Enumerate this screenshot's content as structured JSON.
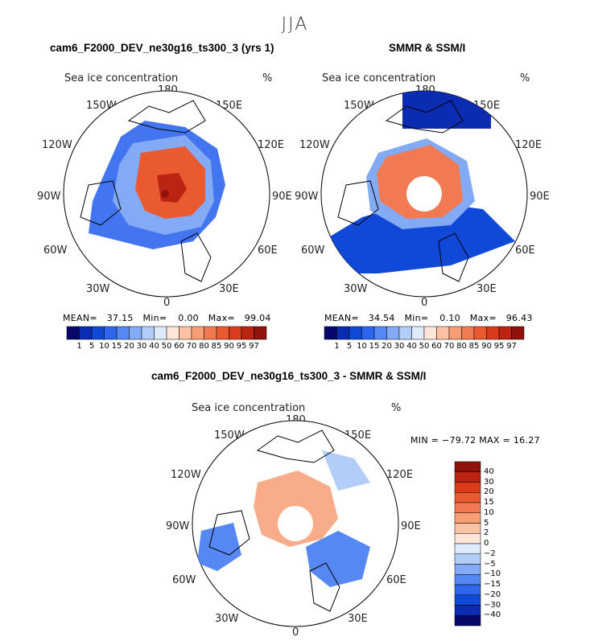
{
  "title": "JJA",
  "colors": {
    "seq": [
      "#08086b",
      "#0b2bb0",
      "#1048d8",
      "#2f66ee",
      "#5588f2",
      "#82aaf5",
      "#b1cdf8",
      "#ddebfb",
      "#fde6d8",
      "#fbc3a3",
      "#f79e76",
      "#f27a52",
      "#ea5a30",
      "#d93b1b",
      "#bb2412",
      "#8f120c"
    ],
    "diff": [
      "#8f120c",
      "#bb2412",
      "#d93b1b",
      "#ea5a30",
      "#f27a52",
      "#f79e76",
      "#fbc3a3",
      "#fde6d8",
      "#ddebfb",
      "#b1cdf8",
      "#82aaf5",
      "#5588f2",
      "#2f66ee",
      "#1048d8",
      "#0b2bb0",
      "#08086b"
    ]
  },
  "panels": [
    {
      "title": "cam6_F2000_DEV_ne30g16_ts300_3 (yrs 1)",
      "variable": "Sea ice concentration",
      "unit": "%",
      "stats": {
        "mean": "37.15",
        "min": "0.00",
        "max": "99.04"
      },
      "stats_labels": {
        "mean": "MEAN=",
        "min": "Min=",
        "max": "Max="
      },
      "colorbar": [
        "1",
        "5",
        "10",
        "15",
        "20",
        "30",
        "40",
        "50",
        "60",
        "70",
        "80",
        "85",
        "90",
        "95",
        "97"
      ]
    },
    {
      "title": "SMMR & SSM/I",
      "variable": "Sea ice concentration",
      "unit": "%",
      "stats": {
        "mean": "34.54",
        "min": "0.10",
        "max": "96.43"
      },
      "stats_labels": {
        "mean": "MEAN=",
        "min": "Min=",
        "max": "Max="
      },
      "colorbar": [
        "1",
        "5",
        "10",
        "15",
        "20",
        "30",
        "40",
        "50",
        "60",
        "70",
        "80",
        "85",
        "90",
        "95",
        "97"
      ]
    },
    {
      "title": "cam6_F2000_DEV_ne30g16_ts300_3 - SMMR & SSM/I",
      "variable": "Sea ice concentration",
      "unit": "%",
      "stats_text": "MIN = −79.72 MAX =   16.27",
      "colorbar": [
        "40",
        "30",
        "20",
        "15",
        "10",
        "5",
        "2",
        "0",
        "−2",
        "−5",
        "−10",
        "−15",
        "−20",
        "−30",
        "−40"
      ]
    }
  ],
  "longitudes": {
    "top": "180",
    "top_left": "150W",
    "top_right": "150E",
    "upper_left": "120W",
    "upper_right": "120E",
    "left": "90W",
    "right": "90E",
    "lower_left": "60W",
    "lower_right": "60E",
    "bottom_left": "30W",
    "bottom_right": "30E",
    "bottom": "0"
  }
}
